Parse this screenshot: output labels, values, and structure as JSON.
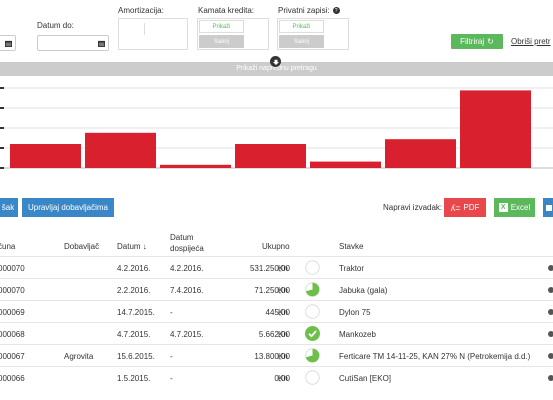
{
  "filters": {
    "date_to_label": "Datum do:",
    "amortization_label": "Amortizacija:",
    "interest_label": "Kamata kredita:",
    "private_label": "Privatni zapisi:",
    "show_label": "Prikaži",
    "hide_label": "Sakrij",
    "filter_button": "Filtriraj",
    "clear_button": "Obriši pretr",
    "advanced_search": "Prikaži naprednu pretragu"
  },
  "chart_data": {
    "type": "bar",
    "values": [
      0.3,
      0.44,
      0.04,
      0.3,
      0.08,
      0.36,
      0.97
    ],
    "color": "#d9202e",
    "grid": true
  },
  "actions": {
    "add_button_partial": "šak",
    "suppliers_button": "Upravljaj dobavljačima",
    "report_label": "Napravi izvadak:",
    "pdf_button": "PDF",
    "excel_button": "Excel"
  },
  "table": {
    "headers": {
      "number": "čuna",
      "supplier": "Dobavljač",
      "date": "Datum ↓",
      "due_line1": "Datum",
      "due_line2": "dospijeća",
      "total": "Ukupno",
      "items": "Stavke"
    },
    "rows": [
      {
        "number": "000070",
        "supplier": "",
        "date": "4.2.2016.",
        "due": "4.2.2016.",
        "amount": "531.250,00",
        "currency": "Kn",
        "status": "empty",
        "items": "Traktor"
      },
      {
        "number": "000070",
        "supplier": "",
        "date": "2.2.2016.",
        "due": "7.4.2016.",
        "amount": "71.250,00",
        "currency": "Kn",
        "status": "partial-large",
        "items": "Jabuka (gala)"
      },
      {
        "number": "000069",
        "supplier": "",
        "date": "14.7.2015.",
        "due": "-",
        "amount": "445,00",
        "currency": "Kn",
        "status": "empty",
        "items": "Dylon 75"
      },
      {
        "number": "000068",
        "supplier": "",
        "date": "4.7.2015.",
        "due": "4.7.2015.",
        "amount": "5.662,00",
        "currency": "Kn",
        "status": "paid",
        "items": "Mankozeb"
      },
      {
        "number": "000067",
        "supplier": "Agrovita",
        "date": "15.6.2015.",
        "due": "-",
        "amount": "13.800,00",
        "currency": "Kn",
        "status": "partial-large",
        "items": "Ferticare TM 14-11-25, KAN 27% N (Petrokemija d.d.)"
      },
      {
        "number": "000066",
        "supplier": "",
        "date": "1.5.2015.",
        "due": "-",
        "amount": "0,00",
        "currency": "Kn",
        "status": "empty",
        "items": "CutiSan [EKO]"
      }
    ]
  }
}
